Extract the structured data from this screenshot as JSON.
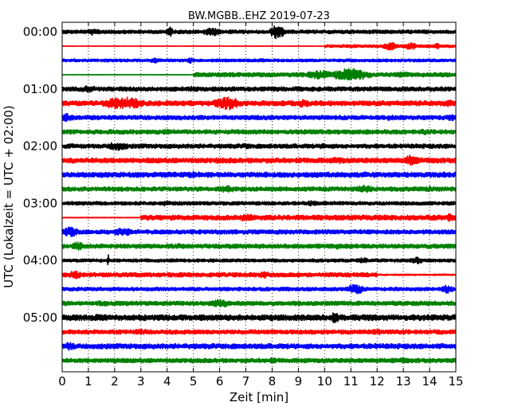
{
  "chart_data": {
    "type": "line",
    "title": "BW.MGBB..EHZ 2019-07-23",
    "xlabel": "Zeit  [min]",
    "ylabel": "UTC (Lokalzeit = UTC + 02:00)",
    "xlim": [
      0,
      15
    ],
    "x_ticks": [
      "0",
      "1",
      "2",
      "3",
      "4",
      "5",
      "6",
      "7",
      "8",
      "9",
      "10",
      "11",
      "12",
      "13",
      "14",
      "15"
    ],
    "y_ticks": [
      "00:00",
      "01:00",
      "02:00",
      "03:00",
      "04:00",
      "05:00"
    ],
    "grid": "vertical-dotted",
    "trace_interval_minutes": 15,
    "trace_colors": [
      "#000000",
      "#ff0000",
      "#0000ff",
      "#008000"
    ],
    "traces": [
      {
        "start": "00:00",
        "color": "#000000",
        "segments": [
          [
            0,
            15,
            0.25
          ]
        ],
        "bursts": [
          [
            4.1,
            0.15,
            0.7
          ],
          [
            5.7,
            0.4,
            0.6
          ],
          [
            8.2,
            0.3,
            1.0
          ],
          [
            1.2,
            0.3,
            0.5
          ]
        ]
      },
      {
        "start": "00:15",
        "color": "#ff0000",
        "segments": [
          [
            0,
            10,
            0.03
          ],
          [
            10,
            15,
            0.2
          ]
        ],
        "bursts": [
          [
            12.5,
            0.3,
            0.6
          ],
          [
            13.3,
            0.3,
            0.5
          ],
          [
            14.3,
            0.2,
            0.4
          ]
        ]
      },
      {
        "start": "00:30",
        "color": "#0000ff",
        "segments": [
          [
            0,
            15,
            0.2
          ]
        ],
        "bursts": [
          [
            3.5,
            0.2,
            0.4
          ],
          [
            4.9,
            0.2,
            0.4
          ],
          [
            7.6,
            0.3,
            0.3
          ]
        ]
      },
      {
        "start": "00:45",
        "color": "#008000",
        "segments": [
          [
            0,
            5,
            0.03
          ],
          [
            5,
            15,
            0.3
          ]
        ],
        "bursts": [
          [
            11,
            0.8,
            0.9
          ],
          [
            9.8,
            0.6,
            0.6
          ],
          [
            13,
            0.5,
            0.4
          ]
        ]
      },
      {
        "start": "01:00",
        "color": "#000000",
        "segments": [
          [
            0,
            15,
            0.3
          ]
        ],
        "bursts": [
          [
            1,
            0.4,
            0.5
          ],
          [
            5,
            0.3,
            0.4
          ],
          [
            11,
            0.3,
            0.3
          ]
        ]
      },
      {
        "start": "01:15",
        "color": "#ff0000",
        "segments": [
          [
            0,
            15,
            0.35
          ]
        ],
        "bursts": [
          [
            2.3,
            0.9,
            0.9
          ],
          [
            6.3,
            0.6,
            0.9
          ],
          [
            9.2,
            0.3,
            0.6
          ],
          [
            14.7,
            0.3,
            0.5
          ]
        ]
      },
      {
        "start": "01:30",
        "color": "#0000ff",
        "segments": [
          [
            0,
            15,
            0.3
          ]
        ],
        "bursts": [
          [
            0.2,
            0.3,
            0.6
          ],
          [
            12.5,
            0.3,
            0.4
          ],
          [
            14.8,
            0.2,
            0.5
          ]
        ]
      },
      {
        "start": "01:45",
        "color": "#008000",
        "segments": [
          [
            0,
            15,
            0.3
          ]
        ],
        "bursts": [
          [
            4,
            0.3,
            0.4
          ],
          [
            9,
            0.3,
            0.3
          ],
          [
            13.8,
            0.3,
            0.4
          ]
        ]
      },
      {
        "start": "02:00",
        "color": "#000000",
        "segments": [
          [
            0,
            15,
            0.3
          ]
        ],
        "bursts": [
          [
            2.1,
            0.5,
            0.6
          ],
          [
            7,
            0.3,
            0.4
          ],
          [
            10,
            0.3,
            0.4
          ]
        ]
      },
      {
        "start": "02:15",
        "color": "#ff0000",
        "segments": [
          [
            0,
            15,
            0.35
          ]
        ],
        "bursts": [
          [
            13.3,
            0.3,
            0.8
          ],
          [
            10.5,
            0.4,
            0.5
          ],
          [
            6,
            0.4,
            0.4
          ]
        ]
      },
      {
        "start": "02:30",
        "color": "#0000ff",
        "segments": [
          [
            0,
            15,
            0.35
          ]
        ],
        "bursts": [
          [
            5,
            0.4,
            0.5
          ],
          [
            11.5,
            0.5,
            0.4
          ]
        ]
      },
      {
        "start": "02:45",
        "color": "#008000",
        "segments": [
          [
            0,
            15,
            0.3
          ]
        ],
        "bursts": [
          [
            6.3,
            0.4,
            0.5
          ],
          [
            11.5,
            0.5,
            0.5
          ],
          [
            14,
            0.4,
            0.4
          ]
        ]
      },
      {
        "start": "03:00",
        "color": "#000000",
        "segments": [
          [
            0,
            15,
            0.25
          ]
        ],
        "bursts": [
          [
            4,
            0.3,
            0.4
          ],
          [
            9.5,
            0.3,
            0.4
          ]
        ]
      },
      {
        "start": "03:15",
        "color": "#ff0000",
        "segments": [
          [
            0,
            3,
            0.05
          ],
          [
            3,
            15,
            0.35
          ]
        ],
        "bursts": [
          [
            7,
            0.5,
            0.5
          ],
          [
            14.8,
            0.2,
            0.6
          ]
        ]
      },
      {
        "start": "03:30",
        "color": "#0000ff",
        "segments": [
          [
            0,
            15,
            0.3
          ]
        ],
        "bursts": [
          [
            0.3,
            0.4,
            0.7
          ],
          [
            2.3,
            0.5,
            0.6
          ]
        ]
      },
      {
        "start": "03:45",
        "color": "#008000",
        "segments": [
          [
            0,
            15,
            0.3
          ]
        ],
        "bursts": [
          [
            0.6,
            0.3,
            0.6
          ],
          [
            4.5,
            0.4,
            0.4
          ],
          [
            10.5,
            0.4,
            0.4
          ]
        ]
      },
      {
        "start": "04:00",
        "color": "#000000",
        "segments": [
          [
            0,
            15,
            0.22
          ]
        ],
        "bursts": [
          [
            1.75,
            0.04,
            1.0
          ],
          [
            11.5,
            0.3,
            0.4
          ],
          [
            13.5,
            0.3,
            0.5
          ]
        ]
      },
      {
        "start": "04:15",
        "color": "#ff0000",
        "segments": [
          [
            0,
            12,
            0.3
          ],
          [
            12,
            15,
            0.1
          ]
        ],
        "bursts": [
          [
            0.5,
            0.3,
            0.6
          ],
          [
            7.7,
            0.3,
            0.5
          ]
        ]
      },
      {
        "start": "04:30",
        "color": "#0000ff",
        "segments": [
          [
            0,
            15,
            0.25
          ]
        ],
        "bursts": [
          [
            11.2,
            0.4,
            0.7
          ],
          [
            14.7,
            0.3,
            0.6
          ]
        ]
      },
      {
        "start": "04:45",
        "color": "#008000",
        "segments": [
          [
            0,
            15,
            0.3
          ]
        ],
        "bursts": [
          [
            6,
            0.5,
            0.6
          ],
          [
            1.5,
            0.5,
            0.4
          ]
        ]
      },
      {
        "start": "05:00",
        "color": "#000000",
        "segments": [
          [
            0,
            15,
            0.4
          ]
        ],
        "bursts": [
          [
            10.4,
            0.2,
            0.8
          ],
          [
            1.5,
            0.6,
            0.5
          ]
        ]
      },
      {
        "start": "05:15",
        "color": "#ff0000",
        "segments": [
          [
            0,
            15,
            0.3
          ]
        ],
        "bursts": [
          [
            3,
            0.5,
            0.4
          ],
          [
            12,
            0.5,
            0.4
          ]
        ]
      },
      {
        "start": "05:30",
        "color": "#0000ff",
        "segments": [
          [
            0,
            15,
            0.35
          ]
        ],
        "bursts": [
          [
            0.3,
            0.3,
            0.6
          ],
          [
            5,
            0.4,
            0.4
          ],
          [
            12,
            0.4,
            0.4
          ]
        ]
      },
      {
        "start": "05:45",
        "color": "#008000",
        "segments": [
          [
            0,
            15,
            0.3
          ]
        ],
        "bursts": [
          [
            2,
            0.4,
            0.4
          ],
          [
            8,
            0.4,
            0.4
          ],
          [
            13,
            0.4,
            0.4
          ]
        ]
      }
    ]
  }
}
